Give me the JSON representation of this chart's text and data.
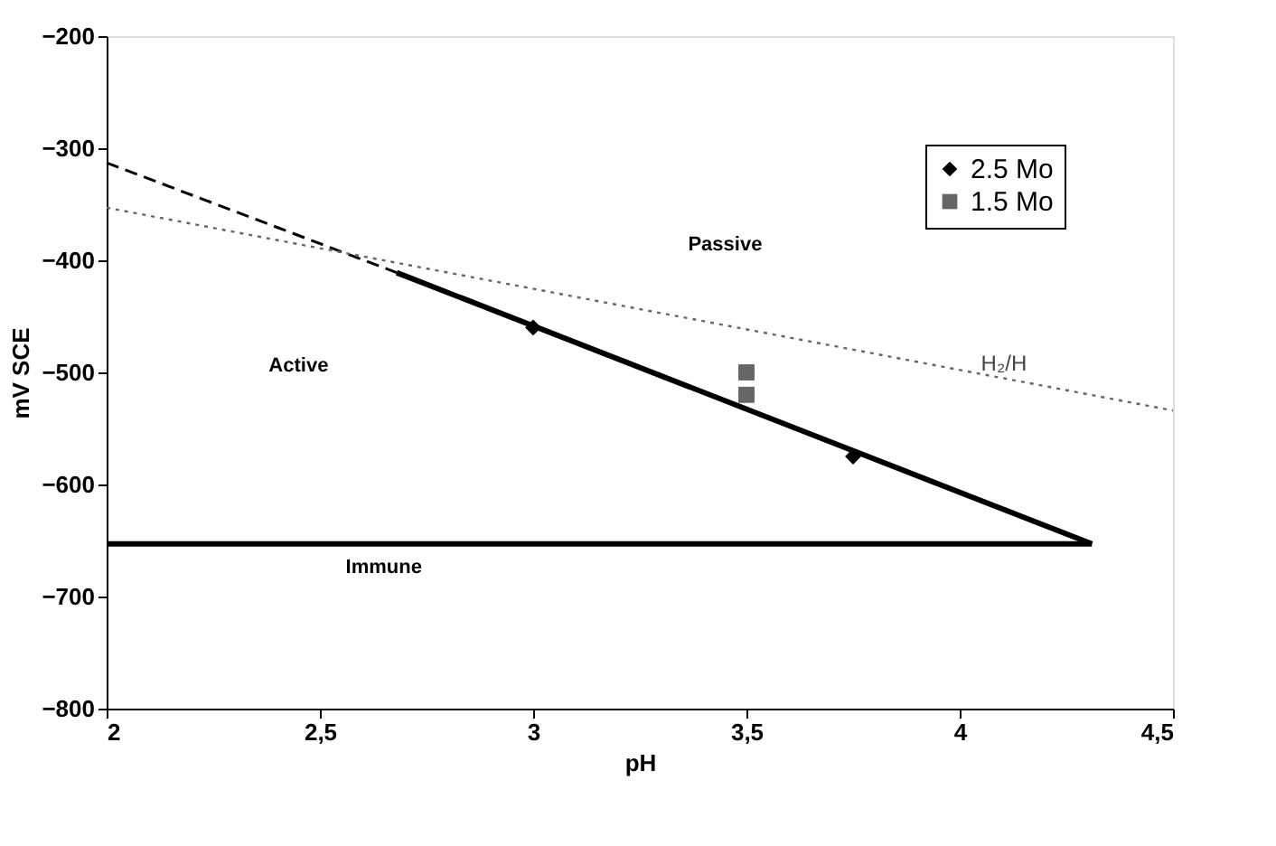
{
  "chart_data": {
    "type": "line",
    "xlabel": "pH",
    "ylabel": "mV SCE",
    "xlim": [
      2,
      4.5
    ],
    "xticks": [
      {
        "value": 2,
        "label": "2"
      },
      {
        "value": 2.5,
        "label": "2,5"
      },
      {
        "value": 3,
        "label": "3"
      },
      {
        "value": 3.5,
        "label": "3,5"
      },
      {
        "value": 4,
        "label": "4"
      },
      {
        "value": 4.5,
        "label": "4,5"
      }
    ],
    "ylim": [
      -800,
      -200
    ],
    "yticks": [
      -800,
      -700,
      -600,
      -500,
      -400,
      -300,
      -200
    ],
    "grid": false,
    "legend": "top right",
    "series": [
      {
        "line_style": "dashed",
        "color": "#000000",
        "x": [
          2,
          2.68
        ],
        "values": [
          -313,
          -411
        ]
      },
      {
        "line_style": "dotted",
        "color": "#666666",
        "x": [
          2,
          4.5
        ],
        "values": [
          -353,
          -534
        ]
      },
      {
        "line_style": "solid",
        "color": "#000000",
        "x": [
          2.68,
          4.31
        ],
        "values": [
          -411,
          -653
        ]
      },
      {
        "line_style": "solid",
        "color": "#000000",
        "x": [
          2,
          4.31
        ],
        "values": [
          -653,
          -653
        ]
      },
      {
        "type": "scatter",
        "name": "2.5 Mo",
        "marker": "diamond",
        "color": "#000000",
        "x": [
          3,
          3.75
        ],
        "values": [
          -460,
          -575
        ]
      },
      {
        "type": "scatter",
        "name": "1.5 Mo",
        "marker": "square",
        "color": "#666666",
        "x": [
          3.5,
          3.5
        ],
        "values": [
          -500,
          -520
        ]
      }
    ],
    "annotations": [
      "Active",
      "Passive",
      "Immune",
      {
        "text": "H₂/H",
        "x": 4.05,
        "y": -495
      }
    ]
  }
}
